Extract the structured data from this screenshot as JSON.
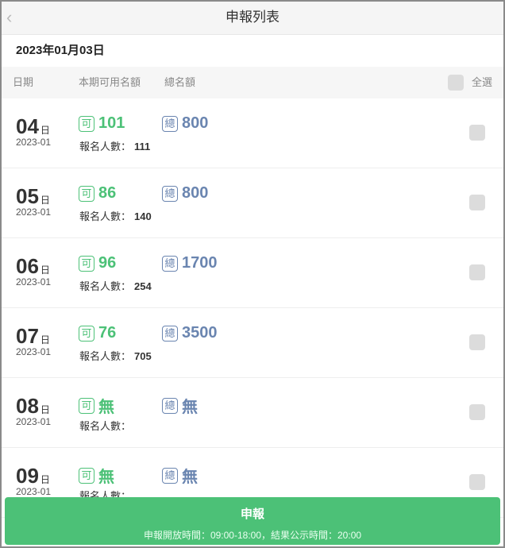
{
  "header": {
    "title": "申報列表",
    "back_icon": "chevron-left-icon"
  },
  "selected_date": "2023年01月03日",
  "columns": {
    "date": "日期",
    "available": "本期可用名額",
    "total": "總名額",
    "select_all": "全選"
  },
  "labels": {
    "avail_tag": "可",
    "total_tag": "總",
    "count_label": "報名人數：",
    "day_suffix": "日"
  },
  "rows": [
    {
      "day": "04",
      "ym": "2023-01",
      "available": "101",
      "total": "800",
      "count": "111"
    },
    {
      "day": "05",
      "ym": "2023-01",
      "available": "86",
      "total": "800",
      "count": "140"
    },
    {
      "day": "06",
      "ym": "2023-01",
      "available": "96",
      "total": "1700",
      "count": "254"
    },
    {
      "day": "07",
      "ym": "2023-01",
      "available": "76",
      "total": "3500",
      "count": "705"
    },
    {
      "day": "08",
      "ym": "2023-01",
      "available": "無",
      "total": "無",
      "count": ""
    },
    {
      "day": "09",
      "ym": "2023-01",
      "available": "無",
      "total": "無",
      "count": ""
    }
  ],
  "submit": {
    "label": "申報",
    "note": "申報開放時間：09:00-18:00，結果公示時間：20:00"
  },
  "colors": {
    "available": "#4cc177",
    "total": "#6a85b0",
    "button": "#4cc177"
  }
}
